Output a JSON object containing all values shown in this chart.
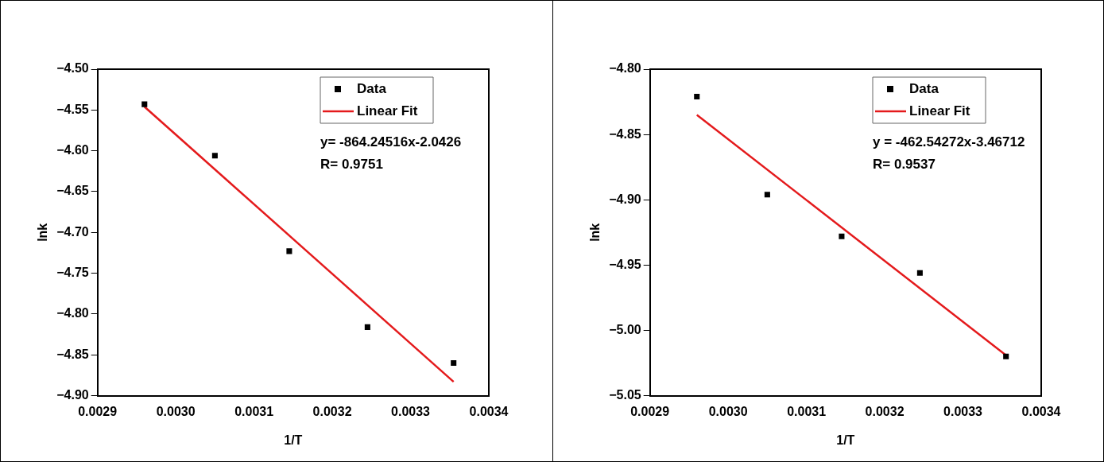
{
  "chart_data": [
    {
      "type": "scatter",
      "xlabel": "1/T",
      "ylabel": "lnk",
      "xlim": [
        0.0029,
        0.0034
      ],
      "xticks": [
        0.0029,
        {
          "value": 0.003,
          "label": "0.0030"
        },
        0.0031,
        0.0032,
        0.0033,
        0.0034
      ],
      "ylim": [
        -4.9,
        -4.5
      ],
      "yticks": [
        {
          "value": -4.9,
          "label": "−4.90"
        },
        {
          "value": -4.85,
          "label": "−4.85"
        },
        {
          "value": -4.8,
          "label": "−4.80"
        },
        {
          "value": -4.75,
          "label": "−4.75"
        },
        {
          "value": -4.7,
          "label": "−4.70"
        },
        {
          "value": -4.65,
          "label": "−4.65"
        },
        {
          "value": -4.6,
          "label": "−4.60"
        },
        {
          "value": -4.55,
          "label": "−4.55"
        },
        {
          "value": -4.5,
          "label": "−4.50"
        }
      ],
      "grid": false,
      "legend": "top right",
      "annotations": [
        "y= -864.24516x-2.0426",
        "R= 0.9751"
      ],
      "series": [
        {
          "name": "Data",
          "type": "scatter",
          "marker": "square",
          "color": "#000000",
          "x": [
            0.00296,
            0.00305,
            0.003145,
            0.003245,
            0.003355
          ],
          "values": [
            -4.543,
            -4.606,
            -4.723,
            -4.816,
            -4.86
          ]
        },
        {
          "name": "Linear Fit",
          "type": "line",
          "marker": "none",
          "color": "#e41a1c",
          "x": [
            0.00296,
            0.003355
          ],
          "values": [
            -4.546,
            -4.883
          ]
        }
      ]
    },
    {
      "type": "scatter",
      "xlabel": "1/T",
      "ylabel": "lnk",
      "xlim": [
        0.0029,
        0.0034
      ],
      "xticks": [
        0.0029,
        {
          "value": 0.003,
          "label": "0.0030"
        },
        0.0031,
        0.0032,
        0.0033,
        0.0034
      ],
      "ylim": [
        -5.05,
        -4.8
      ],
      "yticks": [
        {
          "value": -5.05,
          "label": "−5.05"
        },
        {
          "value": -5.0,
          "label": "−5.00"
        },
        {
          "value": -4.95,
          "label": "−4.95"
        },
        {
          "value": -4.9,
          "label": "−4.90"
        },
        {
          "value": -4.85,
          "label": "−4.85"
        },
        {
          "value": -4.8,
          "label": "−4.80"
        }
      ],
      "grid": false,
      "legend": "top right",
      "annotations": [
        "y = -462.54272x-3.46712",
        "R= 0.9537"
      ],
      "series": [
        {
          "name": "Data",
          "type": "scatter",
          "marker": "square",
          "color": "#000000",
          "x": [
            0.00296,
            0.00305,
            0.003145,
            0.003245,
            0.003355
          ],
          "values": [
            -4.821,
            -4.896,
            -4.928,
            -4.956,
            -5.02
          ]
        },
        {
          "name": "Linear Fit",
          "type": "line",
          "marker": "none",
          "color": "#e41a1c",
          "x": [
            0.00296,
            0.003355
          ],
          "values": [
            -4.835,
            -5.019
          ]
        }
      ]
    }
  ]
}
